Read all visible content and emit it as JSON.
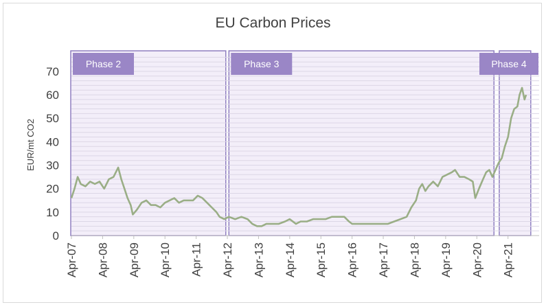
{
  "chart_data": {
    "type": "line",
    "title": "EU Carbon Prices",
    "xlabel": "",
    "ylabel": "EUR/mt CO2",
    "ylim": [
      0,
      77
    ],
    "yticks": [
      0,
      10,
      20,
      30,
      40,
      50,
      60,
      70
    ],
    "xlim": [
      2007.25,
      2021.83
    ],
    "x_tick_labels": [
      "Apr-07",
      "Apr-08",
      "Apr-09",
      "Apr-10",
      "Apr-11",
      "Apr-12",
      "Apr-13",
      "Apr-14",
      "Apr-15",
      "Apr-16",
      "Apr-17",
      "Apr-18",
      "Apr-19",
      "Apr-20",
      "Apr-21"
    ],
    "x_tick_values": [
      2007.25,
      2008.25,
      2009.25,
      2010.25,
      2011.25,
      2012.25,
      2013.25,
      2014.25,
      2015.25,
      2016.25,
      2017.25,
      2018.25,
      2019.25,
      2020.25,
      2021.25
    ],
    "grid": true,
    "series": [
      {
        "color": "#9aae86",
        "points": [
          [
            2007.25,
            16
          ],
          [
            2007.35,
            20
          ],
          [
            2007.45,
            25
          ],
          [
            2007.55,
            22
          ],
          [
            2007.7,
            21
          ],
          [
            2007.85,
            23
          ],
          [
            2008.0,
            22
          ],
          [
            2008.15,
            23
          ],
          [
            2008.3,
            20
          ],
          [
            2008.45,
            24
          ],
          [
            2008.6,
            25
          ],
          [
            2008.75,
            29
          ],
          [
            2008.85,
            24
          ],
          [
            2008.95,
            20
          ],
          [
            2009.05,
            16
          ],
          [
            2009.15,
            13
          ],
          [
            2009.22,
            9
          ],
          [
            2009.35,
            11
          ],
          [
            2009.5,
            14
          ],
          [
            2009.65,
            15
          ],
          [
            2009.8,
            13
          ],
          [
            2009.95,
            13
          ],
          [
            2010.1,
            12
          ],
          [
            2010.25,
            14
          ],
          [
            2010.4,
            15
          ],
          [
            2010.55,
            16
          ],
          [
            2010.7,
            14
          ],
          [
            2010.85,
            15
          ],
          [
            2011.0,
            15
          ],
          [
            2011.15,
            15
          ],
          [
            2011.3,
            17
          ],
          [
            2011.45,
            16
          ],
          [
            2011.6,
            14
          ],
          [
            2011.75,
            12
          ],
          [
            2011.9,
            10
          ],
          [
            2012.0,
            8
          ],
          [
            2012.15,
            7
          ],
          [
            2012.3,
            8
          ],
          [
            2012.5,
            7
          ],
          [
            2012.7,
            8
          ],
          [
            2012.9,
            7
          ],
          [
            2013.05,
            5
          ],
          [
            2013.2,
            4
          ],
          [
            2013.35,
            4
          ],
          [
            2013.5,
            5
          ],
          [
            2013.7,
            5
          ],
          [
            2013.9,
            5
          ],
          [
            2014.1,
            6
          ],
          [
            2014.25,
            7
          ],
          [
            2014.45,
            5
          ],
          [
            2014.6,
            6
          ],
          [
            2014.8,
            6
          ],
          [
            2015.0,
            7
          ],
          [
            2015.2,
            7
          ],
          [
            2015.4,
            7
          ],
          [
            2015.6,
            8
          ],
          [
            2015.8,
            8
          ],
          [
            2016.0,
            8
          ],
          [
            2016.15,
            6
          ],
          [
            2016.25,
            5
          ],
          [
            2016.45,
            5
          ],
          [
            2016.6,
            5
          ],
          [
            2016.8,
            5
          ],
          [
            2017.0,
            5
          ],
          [
            2017.2,
            5
          ],
          [
            2017.4,
            5
          ],
          [
            2017.6,
            6
          ],
          [
            2017.8,
            7
          ],
          [
            2018.0,
            8
          ],
          [
            2018.15,
            12
          ],
          [
            2018.3,
            15
          ],
          [
            2018.4,
            20
          ],
          [
            2018.5,
            22
          ],
          [
            2018.6,
            19
          ],
          [
            2018.7,
            21
          ],
          [
            2018.85,
            23
          ],
          [
            2019.0,
            21
          ],
          [
            2019.15,
            25
          ],
          [
            2019.3,
            26
          ],
          [
            2019.45,
            27
          ],
          [
            2019.55,
            28
          ],
          [
            2019.7,
            25
          ],
          [
            2019.85,
            25
          ],
          [
            2020.0,
            24
          ],
          [
            2020.12,
            23
          ],
          [
            2020.2,
            16
          ],
          [
            2020.32,
            20
          ],
          [
            2020.45,
            24
          ],
          [
            2020.55,
            27
          ],
          [
            2020.65,
            28
          ],
          [
            2020.75,
            25
          ],
          [
            2020.85,
            28
          ],
          [
            2020.95,
            31
          ],
          [
            2021.05,
            33
          ],
          [
            2021.15,
            38
          ],
          [
            2021.25,
            42
          ],
          [
            2021.35,
            50
          ],
          [
            2021.45,
            54
          ],
          [
            2021.55,
            55
          ],
          [
            2021.62,
            60
          ],
          [
            2021.7,
            63
          ],
          [
            2021.78,
            58
          ],
          [
            2021.83,
            60
          ]
        ]
      }
    ],
    "phases": [
      {
        "label": "Phase 2",
        "start": 2007.25,
        "end": 2012.2
      },
      {
        "label": "Phase 3",
        "start": 2012.3,
        "end": 2020.8
      },
      {
        "label": "Phase 4",
        "start": 2020.97,
        "end": 2021.98
      }
    ]
  }
}
